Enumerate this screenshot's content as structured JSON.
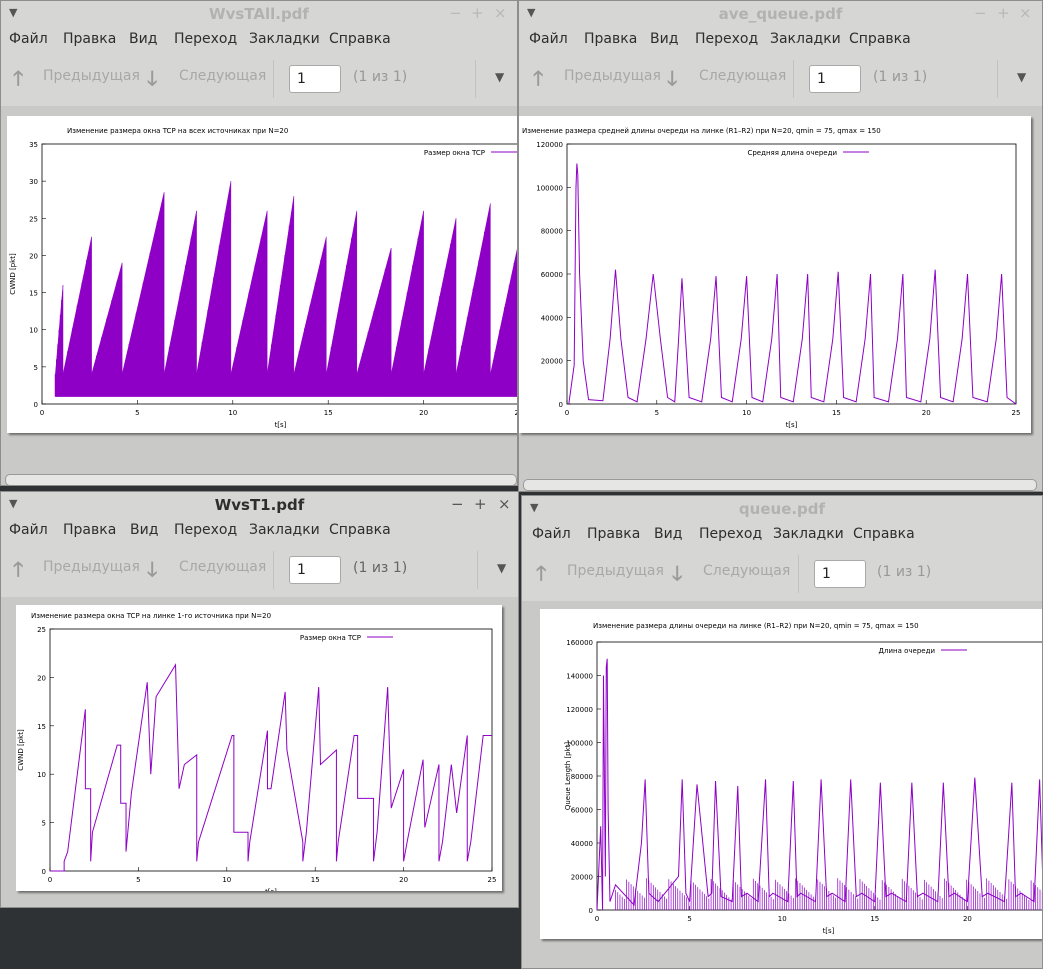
{
  "menu": [
    "Файл",
    "Правка",
    "Вид",
    "Переход",
    "Закладки",
    "Справка"
  ],
  "toolbar": {
    "prev": "Предыдущая",
    "next": "Следующая",
    "page": "1",
    "of": "(1 из 1)"
  },
  "windows": {
    "w1": {
      "title": "WvsTAll.pdf",
      "chart": {
        "title": "Изменение размера окна TCP на всех источниках при N=20",
        "legend": "Размер окна TCP",
        "xlabel": "t[s]",
        "ylabel": "CWND [pkt]"
      }
    },
    "w2": {
      "title": "ave_queue.pdf",
      "chart": {
        "title": "Изменение размера средней длины очереди на линке (R1–R2) при N=20, qmin = 75, qmax = 150",
        "legend": "Средняя длина очереди",
        "xlabel": "t[s]"
      }
    },
    "w3": {
      "title": "WvsT1.pdf",
      "chart": {
        "title": "Изменение размера окна TCP на линке 1-го источника при N=20",
        "legend": "Размер окна TCP",
        "xlabel": "t[s]",
        "ylabel": "CWND [pkt]"
      }
    },
    "w4": {
      "title": "queue.pdf",
      "chart": {
        "title": "Изменение размера длины очереди на линке (R1–R2) при N=20, qmin = 75, qmax = 150",
        "legend": "Длина очереди",
        "xlabel": "t[s]",
        "ylabel": "Queue Length [pkt]"
      }
    }
  },
  "colors": {
    "series": "#8e00c6"
  },
  "chart_data": [
    {
      "type": "line",
      "title": "Изменение размера окна TCP на всех источниках при N=20",
      "xlabel": "t[s]",
      "ylabel": "CWND [pkt]",
      "xlim": [
        0,
        25
      ],
      "ylim": [
        0,
        35
      ],
      "xticks": [
        "0",
        "5",
        "10",
        "15",
        "20",
        "25"
      ],
      "yticks": [
        "0",
        "5",
        "10",
        "15",
        "20",
        "25",
        "30",
        "35"
      ],
      "legend": "top-right",
      "series": [
        {
          "name": "Размер окна TCP",
          "peaks_x": [
            1.1,
            2.6,
            4.2,
            6.4,
            8.1,
            9.9,
            11.8,
            13.2,
            14.9,
            16.5,
            18.3,
            20.0,
            21.7,
            23.5,
            25.0
          ],
          "peaks_y": [
            16,
            22.5,
            19,
            28.5,
            26,
            30,
            26,
            28,
            22.5,
            26,
            21,
            26,
            25,
            27,
            22
          ]
        }
      ]
    },
    {
      "type": "line",
      "title": "Изменение размера средней длины очереди на линке (R1–R2) при N=20, qmin = 75, qmax = 150",
      "xlabel": "t[s]",
      "xlim": [
        0,
        25
      ],
      "ylim": [
        0,
        120000
      ],
      "xticks": [
        "0",
        "5",
        "10",
        "15",
        "20",
        "25"
      ],
      "yticks": [
        "0",
        "20000",
        "40000",
        "60000",
        "80000",
        "100000",
        "120000"
      ],
      "legend": "top-right",
      "series": [
        {
          "name": "Средняя длина очереди",
          "x": [
            0.1,
            0.4,
            0.5,
            0.55,
            0.6,
            0.7,
            0.9,
            1.2,
            2.0,
            2.4,
            2.7,
            3.0,
            3.4,
            3.9,
            4.4,
            4.8,
            5.2,
            5.6,
            6.0,
            6.2,
            6.4,
            6.8,
            7.5,
            8.0,
            8.3,
            8.6,
            9.2,
            9.7,
            10.0,
            10.3,
            10.9,
            11.4,
            11.7,
            11.9,
            12.6,
            13.1,
            13.4,
            13.6,
            14.3,
            14.8,
            15.1,
            15.4,
            16.1,
            16.6,
            16.9,
            17.1,
            17.9,
            18.4,
            18.7,
            18.9,
            19.7,
            20.2,
            20.5,
            20.8,
            21.5,
            22.0,
            22.3,
            22.6,
            23.4,
            23.9,
            24.2,
            24.5,
            25.0
          ],
          "y": [
            0,
            18000,
            100000,
            111000,
            106000,
            60000,
            20000,
            2000,
            1500,
            30000,
            62000,
            30000,
            3000,
            1000,
            30000,
            60000,
            30000,
            3000,
            1000,
            28000,
            58000,
            3000,
            1000,
            30000,
            59000,
            3000,
            1000,
            30000,
            59000,
            3000,
            1000,
            30000,
            60000,
            3000,
            1000,
            30000,
            60000,
            3000,
            1000,
            30000,
            61000,
            3000,
            1000,
            30000,
            60000,
            3000,
            1000,
            30000,
            60000,
            3000,
            1000,
            30000,
            62000,
            3000,
            1000,
            30000,
            60000,
            3000,
            1000,
            30000,
            60000,
            3000,
            0
          ]
        }
      ]
    },
    {
      "type": "line",
      "title": "Изменение размера окна TCP на линке 1-го источника при N=20",
      "xlabel": "t[s]",
      "ylabel": "CWND [pkt]",
      "xlim": [
        0,
        25
      ],
      "ylim": [
        0,
        25
      ],
      "xticks": [
        "0",
        "5",
        "10",
        "15",
        "20",
        "25"
      ],
      "yticks": [
        "0",
        "5",
        "10",
        "15",
        "20",
        "25"
      ],
      "legend": "top-right",
      "series": [
        {
          "name": "Размер окна TCP",
          "x": [
            0,
            0.8,
            0.8,
            1.0,
            2.0,
            2.0,
            2.3,
            2.3,
            2.4,
            3.8,
            4.0,
            4.0,
            4.3,
            4.3,
            4.6,
            5.5,
            5.7,
            5.7,
            6.0,
            7.1,
            7.3,
            7.3,
            7.6,
            8.3,
            8.3,
            8.4,
            10.3,
            10.4,
            10.4,
            11.2,
            11.2,
            11.3,
            12.3,
            12.3,
            12.5,
            13.3,
            13.4,
            13.4,
            14.3,
            14.3,
            14.5,
            15.2,
            15.3,
            15.3,
            16.2,
            16.2,
            16.3,
            17.2,
            17.4,
            17.4,
            18.3,
            18.3,
            18.5,
            19.1,
            19.3,
            19.3,
            20.0,
            20.0,
            20.2,
            21.1,
            21.2,
            21.2,
            22.0,
            22.0,
            22.2,
            22.7,
            23.0,
            23.0,
            23.6,
            23.6,
            23.8,
            24.5,
            25.0
          ],
          "y": [
            0,
            0,
            1,
            2,
            16.7,
            8.5,
            8.5,
            1,
            4,
            13,
            13,
            7,
            7,
            2,
            8,
            19.5,
            10,
            10,
            18,
            21.3,
            8.5,
            8.5,
            11,
            12,
            1,
            3,
            14,
            14,
            4,
            4,
            1,
            3,
            14.5,
            8.5,
            8.5,
            18.5,
            12.5,
            12.5,
            3,
            1,
            4,
            19,
            11,
            11,
            12.5,
            1,
            3,
            14,
            14,
            7.5,
            7.5,
            1,
            4,
            19,
            6.5,
            6.5,
            10.5,
            1,
            3,
            11.5,
            4.5,
            4.5,
            11,
            1,
            3,
            11,
            6,
            6,
            14,
            1,
            3,
            14,
            14
          ]
        }
      ]
    },
    {
      "type": "line",
      "title": "Изменение размера длины очереди на линке (R1–R2) при N=20, qmin = 75, qmax = 150",
      "xlabel": "t[s]",
      "ylabel": "Queue Length [pkt]",
      "xlim": [
        0,
        25
      ],
      "ylim": [
        0,
        160000
      ],
      "xticks": [
        "0",
        "5",
        "10",
        "15",
        "20"
      ],
      "yticks": [
        "0",
        "20000",
        "40000",
        "60000",
        "80000",
        "100000",
        "120000",
        "140000",
        "160000"
      ],
      "legend": "top-right",
      "series": [
        {
          "name": "Длина очереди",
          "x": [
            0,
            0.2,
            0.3,
            0.35,
            0.45,
            0.5,
            0.55,
            0.6,
            0.7,
            1.0,
            2.0,
            2.4,
            2.6,
            2.8,
            3.3,
            4.4,
            4.6,
            4.8,
            5.0,
            5.4,
            6.0,
            6.2,
            6.4,
            6.7,
            7.3,
            7.6,
            7.8,
            8.1,
            8.7,
            9.1,
            9.3,
            9.5,
            10.3,
            10.6,
            10.8,
            11.0,
            11.8,
            12.1,
            12.4,
            12.7,
            13.4,
            13.7,
            14.0,
            14.3,
            15.0,
            15.3,
            15.6,
            15.9,
            16.7,
            17.0,
            17.3,
            17.6,
            18.4,
            18.7,
            19.0,
            19.3,
            20.0,
            20.4,
            20.8,
            21.1,
            22.0,
            22.4,
            22.6,
            22.9,
            23.6,
            23.9,
            24.1,
            24.4,
            25.0
          ],
          "y": [
            0,
            50000,
            0,
            140000,
            20000,
            145000,
            150000,
            60000,
            5000,
            15000,
            3000,
            40000,
            78000,
            10000,
            5000,
            20000,
            78000,
            10000,
            5000,
            75000,
            8000,
            10000,
            77000,
            8000,
            5000,
            74000,
            8000,
            10000,
            5000,
            78000,
            8000,
            10000,
            5000,
            77000,
            8000,
            10000,
            5000,
            78000,
            8000,
            10000,
            5000,
            78000,
            8000,
            10000,
            5000,
            76000,
            8000,
            10000,
            5000,
            76000,
            8000,
            10000,
            5000,
            76000,
            8000,
            10000,
            5000,
            79000,
            8000,
            10000,
            5000,
            76000,
            8000,
            10000,
            5000,
            78000,
            8000,
            10000,
            5000
          ]
        }
      ]
    }
  ]
}
